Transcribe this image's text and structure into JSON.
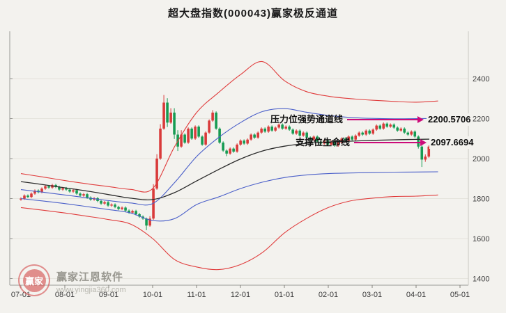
{
  "header": {
    "title": "超大盘指数(000043)赢家极反通道"
  },
  "annotations": [
    {
      "label": "压力位强势通道线",
      "value": "2200.5706"
    },
    {
      "label": "支撑位生命线",
      "value": "2097.6694"
    }
  ],
  "watermark": {
    "brand": "赢家江恩软件",
    "url": "www.yingjia360.com",
    "logo_text": "赢家"
  },
  "chart_data": {
    "type": "candlestick",
    "title": "超大盘指数(000043)赢家极反通道",
    "x_ticks": [
      "07-01",
      "08-01",
      "09-01",
      "10-01",
      "11-01",
      "12-01",
      "01-01",
      "02-01",
      "03-01",
      "04-01",
      "05-01"
    ],
    "y_ticks": [
      1400,
      1600,
      1800,
      2000,
      2200,
      2400
    ],
    "ylim": [
      1367,
      2520
    ],
    "grid": true,
    "legend": "none",
    "colors": {
      "up": "#d93a3a",
      "down": "#169b52",
      "red_line": "#e03c3c",
      "blue_line": "#4a5fc9",
      "black_line": "#2a2a2a",
      "annotation_arrow": "#cc0b7a"
    },
    "key_levels": {
      "resistance_strong_channel": 2200.5706,
      "support_lifeline": 2097.6694
    },
    "line_t": [
      0,
      0.5,
      1,
      1.5,
      2,
      2.5,
      3,
      3.5,
      4,
      4.5,
      5,
      5.5,
      6,
      6.5,
      7,
      7.5,
      8,
      8.5,
      9,
      9.5
    ],
    "lines": [
      {
        "name": "upper-outer-rail-red",
        "color": "#e03c3c",
        "width": 1.1,
        "values": [
          1925,
          1908,
          1890,
          1874,
          1860,
          1846,
          1850,
          2060,
          2230,
          2330,
          2420,
          2485,
          2390,
          2335,
          2312,
          2300,
          2292,
          2286,
          2282,
          2288
        ]
      },
      {
        "name": "resistance-strong-channel-blue",
        "color": "#4a5fc9",
        "width": 1.1,
        "values": [
          1845,
          1832,
          1818,
          1804,
          1790,
          1778,
          1775,
          1880,
          2010,
          2105,
          2180,
          2235,
          2250,
          2232,
          2216,
          2206,
          2201,
          2199,
          2200,
          2200.57
        ]
      },
      {
        "name": "lifeline-black",
        "color": "#2a2a2a",
        "width": 1.3,
        "values": [
          1885,
          1870,
          1854,
          1838,
          1820,
          1802,
          1795,
          1830,
          1888,
          1945,
          1998,
          2038,
          2062,
          2076,
          2083,
          2087,
          2091,
          2094,
          2096,
          2097.67
        ]
      },
      {
        "name": "lower-channel-blue",
        "color": "#4a5fc9",
        "width": 1.1,
        "values": [
          1800,
          1788,
          1775,
          1760,
          1745,
          1728,
          1690,
          1700,
          1770,
          1808,
          1850,
          1882,
          1905,
          1918,
          1925,
          1928,
          1930,
          1932,
          1933,
          1934
        ]
      },
      {
        "name": "lower-outer-rail-red",
        "color": "#e03c3c",
        "width": 1.1,
        "values": [
          1755,
          1742,
          1728,
          1712,
          1695,
          1672,
          1600,
          1495,
          1458,
          1445,
          1470,
          1530,
          1628,
          1700,
          1755,
          1788,
          1802,
          1810,
          1812,
          1818
        ]
      }
    ],
    "candles": {
      "t0": 0,
      "dt_months": 0.0794,
      "ohlc": [
        [
          1795,
          1806,
          1789,
          1800
        ],
        [
          1800,
          1821,
          1794,
          1815
        ],
        [
          1815,
          1821,
          1802,
          1808
        ],
        [
          1808,
          1831,
          1802,
          1825
        ],
        [
          1825,
          1846,
          1819,
          1840
        ],
        [
          1840,
          1846,
          1826,
          1832
        ],
        [
          1832,
          1856,
          1826,
          1850
        ],
        [
          1850,
          1868,
          1844,
          1862
        ],
        [
          1862,
          1868,
          1849,
          1855
        ],
        [
          1855,
          1874,
          1849,
          1868
        ],
        [
          1868,
          1874,
          1852,
          1858
        ],
        [
          1858,
          1864,
          1839,
          1845
        ],
        [
          1845,
          1858,
          1839,
          1852
        ],
        [
          1852,
          1858,
          1839,
          1845
        ],
        [
          1845,
          1851,
          1829,
          1835
        ],
        [
          1835,
          1848,
          1829,
          1842
        ],
        [
          1842,
          1848,
          1819,
          1825
        ],
        [
          1825,
          1831,
          1809,
          1815
        ],
        [
          1815,
          1828,
          1809,
          1822
        ],
        [
          1822,
          1828,
          1799,
          1805
        ],
        [
          1805,
          1811,
          1789,
          1795
        ],
        [
          1795,
          1808,
          1789,
          1802
        ],
        [
          1802,
          1808,
          1782,
          1788
        ],
        [
          1788,
          1794,
          1769,
          1775
        ],
        [
          1775,
          1788,
          1769,
          1782
        ],
        [
          1782,
          1788,
          1759,
          1765
        ],
        [
          1765,
          1776,
          1759,
          1770
        ],
        [
          1770,
          1776,
          1752,
          1758
        ],
        [
          1758,
          1764,
          1742,
          1748
        ],
        [
          1748,
          1761,
          1742,
          1755
        ],
        [
          1755,
          1761,
          1734,
          1740
        ],
        [
          1740,
          1746,
          1724,
          1730
        ],
        [
          1730,
          1744,
          1724,
          1738
        ],
        [
          1738,
          1744,
          1716,
          1722
        ],
        [
          1722,
          1728,
          1704,
          1710
        ],
        [
          1710,
          1716,
          1694,
          1700
        ],
        [
          1700,
          1705,
          1642,
          1665
        ],
        [
          1665,
          1712,
          1659,
          1700
        ],
        [
          1700,
          1872,
          1694,
          1850
        ],
        [
          1850,
          2022,
          1844,
          2000
        ],
        [
          2000,
          2172,
          1994,
          2150
        ],
        [
          2150,
          2318,
          2144,
          2280
        ],
        [
          2280,
          2302,
          2158,
          2180
        ],
        [
          2180,
          2252,
          2174,
          2230
        ],
        [
          2230,
          2252,
          2098,
          2120
        ],
        [
          2120,
          2142,
          2038,
          2060
        ],
        [
          2060,
          2142,
          2054,
          2120
        ],
        [
          2120,
          2126,
          2074,
          2080
        ],
        [
          2080,
          2156,
          2074,
          2150
        ],
        [
          2150,
          2156,
          2094,
          2100
        ],
        [
          2100,
          2166,
          2094,
          2160
        ],
        [
          2160,
          2166,
          2104,
          2110
        ],
        [
          2110,
          2116,
          2064,
          2070
        ],
        [
          2070,
          2136,
          2064,
          2130
        ],
        [
          2130,
          2196,
          2124,
          2190
        ],
        [
          2190,
          2242,
          2184,
          2230
        ],
        [
          2230,
          2236,
          2144,
          2150
        ],
        [
          2150,
          2156,
          2074,
          2080
        ],
        [
          2080,
          2086,
          2034,
          2040
        ],
        [
          2040,
          2046,
          2012,
          2025
        ],
        [
          2025,
          2056,
          2019,
          2050
        ],
        [
          2050,
          2056,
          2029,
          2035
        ],
        [
          2035,
          2076,
          2029,
          2070
        ],
        [
          2070,
          2096,
          2064,
          2090
        ],
        [
          2090,
          2096,
          2069,
          2075
        ],
        [
          2075,
          2101,
          2069,
          2095
        ],
        [
          2095,
          2126,
          2089,
          2120
        ],
        [
          2120,
          2126,
          2099,
          2105
        ],
        [
          2105,
          2136,
          2099,
          2130
        ],
        [
          2130,
          2156,
          2124,
          2150
        ],
        [
          2150,
          2156,
          2129,
          2135
        ],
        [
          2135,
          2166,
          2129,
          2160
        ],
        [
          2160,
          2166,
          2134,
          2140
        ],
        [
          2140,
          2161,
          2134,
          2155
        ],
        [
          2155,
          2176,
          2149,
          2170
        ],
        [
          2170,
          2176,
          2144,
          2150
        ],
        [
          2150,
          2166,
          2144,
          2160
        ],
        [
          2160,
          2166,
          2139,
          2145
        ],
        [
          2145,
          2151,
          2119,
          2125
        ],
        [
          2125,
          2146,
          2119,
          2140
        ],
        [
          2140,
          2146,
          2109,
          2115
        ],
        [
          2115,
          2136,
          2109,
          2130
        ],
        [
          2130,
          2136,
          2099,
          2105
        ],
        [
          2105,
          2111,
          2089,
          2095
        ],
        [
          2095,
          2116,
          2089,
          2110
        ],
        [
          2110,
          2116,
          2079,
          2085
        ],
        [
          2085,
          2091,
          2069,
          2075
        ],
        [
          2075,
          2096,
          2069,
          2090
        ],
        [
          2090,
          2096,
          2064,
          2070
        ],
        [
          2070,
          2091,
          2064,
          2085
        ],
        [
          2085,
          2091,
          2059,
          2065
        ],
        [
          2065,
          2086,
          2059,
          2080
        ],
        [
          2080,
          2106,
          2074,
          2100
        ],
        [
          2100,
          2106,
          2084,
          2090
        ],
        [
          2090,
          2116,
          2084,
          2110
        ],
        [
          2110,
          2116,
          2089,
          2095
        ],
        [
          2095,
          2121,
          2089,
          2115
        ],
        [
          2115,
          2136,
          2109,
          2130
        ],
        [
          2130,
          2136,
          2114,
          2120
        ],
        [
          2120,
          2146,
          2114,
          2140
        ],
        [
          2140,
          2146,
          2119,
          2125
        ],
        [
          2125,
          2151,
          2119,
          2145
        ],
        [
          2145,
          2171,
          2139,
          2165
        ],
        [
          2165,
          2171,
          2144,
          2150
        ],
        [
          2150,
          2181,
          2144,
          2175
        ],
        [
          2175,
          2181,
          2154,
          2160
        ],
        [
          2160,
          2176,
          2154,
          2170
        ],
        [
          2170,
          2176,
          2149,
          2155
        ],
        [
          2155,
          2161,
          2134,
          2140
        ],
        [
          2140,
          2156,
          2134,
          2150
        ],
        [
          2150,
          2156,
          2124,
          2130
        ],
        [
          2130,
          2136,
          2114,
          2120
        ],
        [
          2120,
          2141,
          2114,
          2135
        ],
        [
          2135,
          2141,
          2104,
          2110
        ],
        [
          2110,
          2116,
          2050,
          2060
        ],
        [
          2060,
          2066,
          1958,
          1995
        ],
        [
          1995,
          2021,
          1984,
          2010
        ],
        [
          2010,
          2066,
          2004,
          2060
        ],
        [
          2060,
          2096,
          2054,
          2090
        ],
        [
          2090,
          2111,
          2084,
          2105
        ]
      ]
    }
  }
}
